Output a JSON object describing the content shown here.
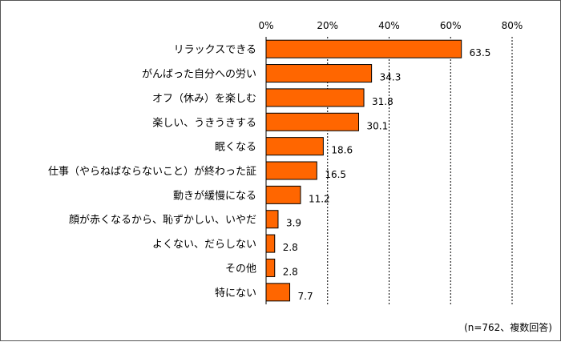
{
  "chart_data": {
    "type": "bar",
    "orientation": "horizontal",
    "categories": [
      "リラックスできる",
      "がんばった自分への労い",
      "オフ（休み）を楽しむ",
      "楽しい、うきうきする",
      "眠くなる",
      "仕事（やらねばならないこと）が終わった証",
      "動きが緩慢になる",
      "顔が赤くなるから、恥ずかしい、いやだ",
      "よくない、だらしない",
      "その他",
      "特にない"
    ],
    "values": [
      63.5,
      34.3,
      31.8,
      30.1,
      18.6,
      16.5,
      11.2,
      3.9,
      2.8,
      2.8,
      7.7
    ],
    "value_labels": [
      "63.5",
      "34.3",
      "31.8",
      "30.1",
      "18.6",
      "16.5",
      "11.2",
      "3.9",
      "2.8",
      "2.8",
      "7.7"
    ],
    "xlim": [
      0,
      80
    ],
    "ticks": [
      0,
      20,
      40,
      60,
      80
    ],
    "tick_labels": [
      "0%",
      "20%",
      "40%",
      "60%",
      "80%"
    ],
    "gridlines": "dashed-vertical",
    "bar_color": "#FF6600",
    "bar_edge_color": "#000000",
    "note": "(n=762、複数回答)"
  }
}
